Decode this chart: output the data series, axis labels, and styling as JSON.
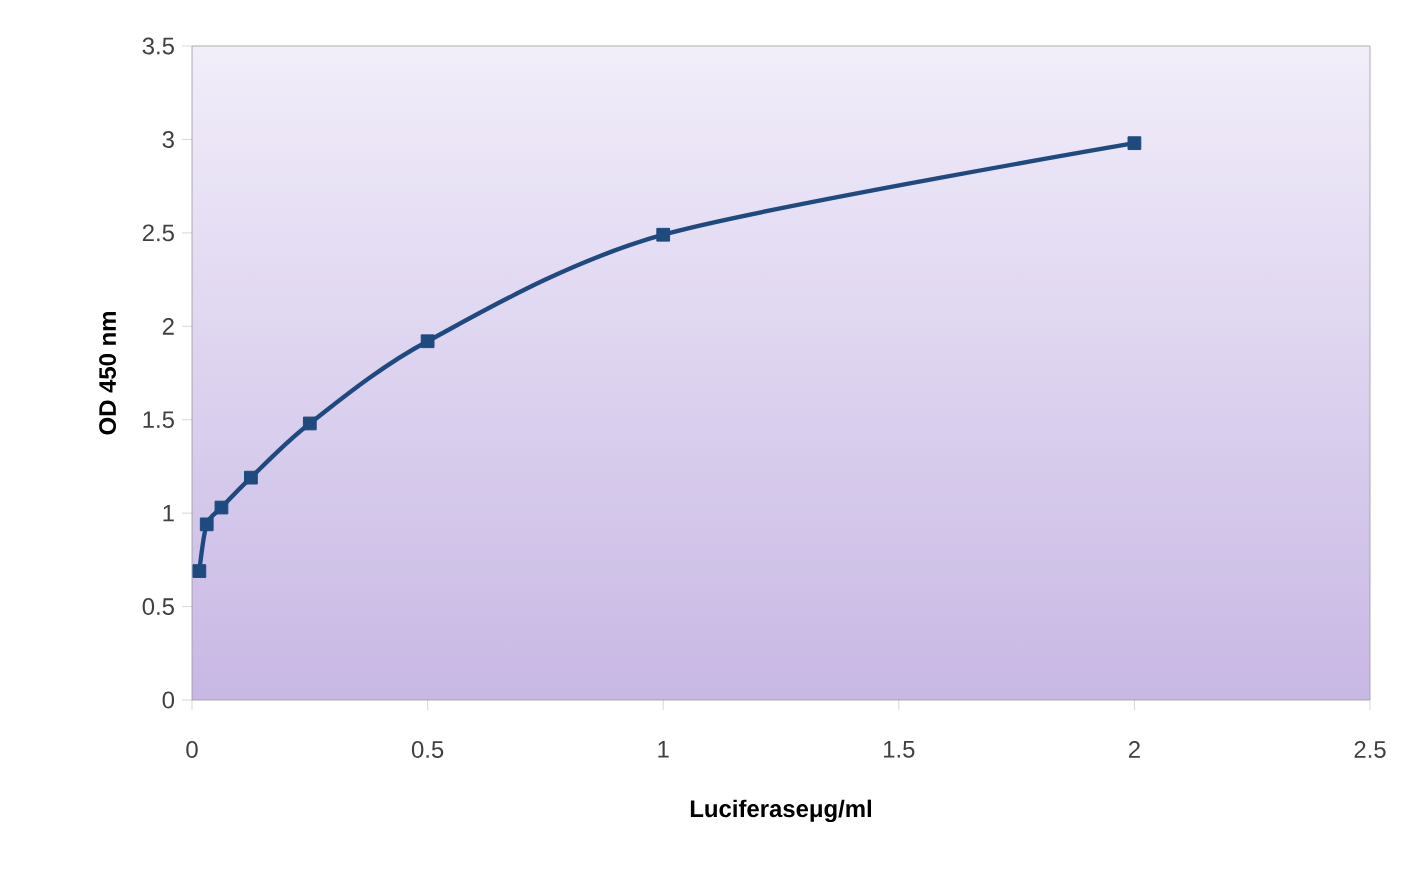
{
  "chart_data": {
    "type": "line",
    "xlabel": "Luciferaseμg/ml",
    "ylabel": "OD 450 nm",
    "x": [
      0.015625,
      0.03125,
      0.0625,
      0.125,
      0.25,
      0.5,
      1,
      2
    ],
    "series": [
      {
        "color": "#1f4a80",
        "values": [
          0.69,
          0.94,
          1.03,
          1.19,
          1.48,
          1.92,
          2.49,
          2.98
        ]
      }
    ],
    "xlim": [
      0,
      2.5
    ],
    "ylim": [
      0,
      3.5
    ],
    "xticks": [
      0,
      0.5,
      1,
      1.5,
      2,
      2.5
    ],
    "yticks": [
      0,
      0.5,
      1,
      1.5,
      2,
      2.5,
      3,
      3.5
    ],
    "marker": "square",
    "line_style": "solid"
  }
}
